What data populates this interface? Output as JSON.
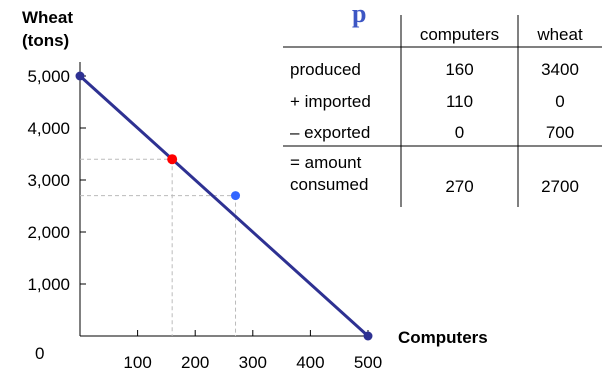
{
  "title_fragment": "p",
  "chart_data": {
    "type": "line",
    "ylabel_lines": [
      "Wheat",
      "(tons)"
    ],
    "xlabel": "Computers",
    "origin_label": "0",
    "xlim": [
      0,
      500
    ],
    "ylim": [
      0,
      5000
    ],
    "x_ticks": [
      100,
      200,
      300,
      400,
      500
    ],
    "x_tick_labels": [
      "100",
      "200",
      "300",
      "400",
      "500"
    ],
    "y_ticks": [
      1000,
      2000,
      3000,
      4000,
      5000
    ],
    "y_tick_labels": [
      "1,000",
      "2,000",
      "3,000",
      "4,000",
      "5,000"
    ],
    "grid": false,
    "frontier": {
      "x": [
        0,
        500
      ],
      "y": [
        5000,
        0
      ],
      "color": "#2e3192"
    },
    "production_point": {
      "x": 160,
      "y": 3400,
      "color": "#ff0000"
    },
    "consumption_point": {
      "x": 270,
      "y": 2700,
      "color": "#3366ff"
    },
    "endpoint_color": "#2e3192",
    "guide_color": "#bbbbbb"
  },
  "table": {
    "headers": [
      "computers",
      "wheat"
    ],
    "rows": [
      {
        "label": [
          "produced"
        ],
        "values": [
          "160",
          "3400"
        ]
      },
      {
        "label": [
          "+ imported"
        ],
        "values": [
          "110",
          "0"
        ]
      },
      {
        "label": [
          "– exported"
        ],
        "values": [
          "0",
          "700"
        ]
      },
      {
        "label": [
          "= amount",
          "consumed"
        ],
        "values": [
          "270",
          "2700"
        ]
      }
    ]
  }
}
